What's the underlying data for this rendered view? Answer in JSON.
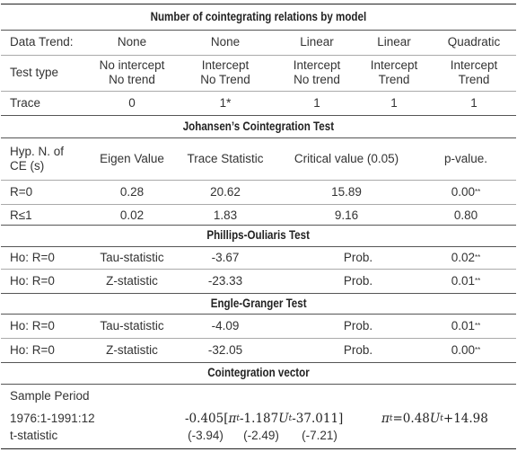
{
  "section1": {
    "title": "Number of cointegrating relations by model",
    "rows": [
      {
        "label": "Data Trend:",
        "cols": [
          "None",
          "None",
          "Linear",
          "Linear",
          "Quadratic"
        ]
      },
      {
        "label": "Test type",
        "cols": [
          "No intercept\nNo trend",
          "Intercept\nNo Trend",
          "Intercept\nNo trend",
          "Intercept\nTrend",
          "Intercept\nTrend"
        ]
      },
      {
        "label": "Trace",
        "cols": [
          "0",
          "1*",
          "1",
          "1",
          "1"
        ]
      }
    ]
  },
  "section2": {
    "title": "Johansen’s Cointegration Test",
    "headers": [
      "Hyp. N. of\nCE (s)",
      "Eigen Value",
      "Trace Statistic",
      "Critical value (0.05)",
      "p-value."
    ],
    "rows": [
      {
        "hyp": "R=0",
        "eigen": "0.28",
        "trace": "20.62",
        "critical": "15.89",
        "p": "0.00",
        "p_sup": "**"
      },
      {
        "hyp": "R≤1",
        "eigen": "0.02",
        "trace": "1.83",
        "critical": "9.16",
        "p": "0.80",
        "p_sup": ""
      }
    ]
  },
  "section3": {
    "title": "Phillips-Ouliaris Test",
    "rows": [
      {
        "hyp": "Ho: R=0",
        "stat": "Tau-statistic",
        "value": "-3.67",
        "prob_label": "Prob.",
        "p": "0.02",
        "p_sup": "**"
      },
      {
        "hyp": "Ho: R=0",
        "stat": "Z-statistic",
        "value": "-23.33",
        "prob_label": "Prob.",
        "p": "0.01",
        "p_sup": "**"
      }
    ]
  },
  "section4": {
    "title": "Engle-Granger Test",
    "rows": [
      {
        "hyp": "Ho: R=0",
        "stat": "Tau-statistic",
        "value": "-4.09",
        "prob_label": "Prob.",
        "p": "0.01",
        "p_sup": "**"
      },
      {
        "hyp": "Ho: R=0",
        "stat": "Z-statistic",
        "value": "-32.05",
        "prob_label": "Prob.",
        "p": "0.00",
        "p_sup": "**"
      }
    ]
  },
  "section5": {
    "title": "Cointegration vector",
    "sample_label": "Sample Period",
    "period": "1976:1-1991:12",
    "tstat_label": "t-statistic",
    "eq1": {
      "coef": "-0.405",
      "pi": "π",
      "sub_t": "t",
      "mid": "-1.187",
      "u": "U",
      "tail": "-37.011]"
    },
    "eq2": {
      "pi": "π",
      "sub_t": "t",
      "eq": " =0.48",
      "u": "U",
      "tail": "+14.98"
    },
    "tstats": [
      "(-3.94)",
      "(-2.49)",
      "(-7.21)"
    ]
  }
}
